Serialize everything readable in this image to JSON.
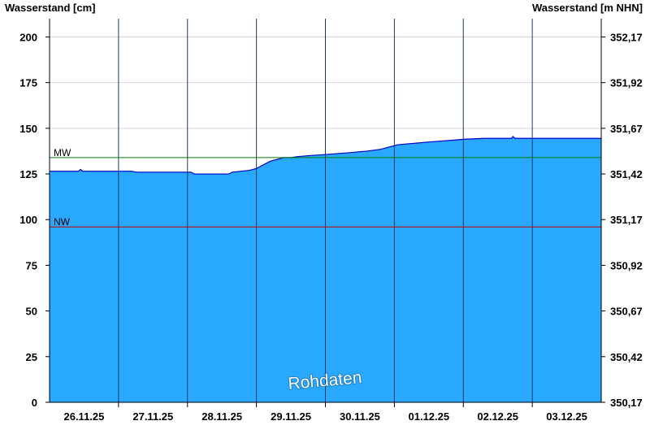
{
  "chart_data": {
    "type": "area",
    "left_axis_label": "Wasserstand [cm]",
    "right_axis_label": "Wasserstand [m NHN]",
    "ylim": [
      0,
      210
    ],
    "y_ticks": [
      0,
      25,
      50,
      75,
      100,
      125,
      150,
      175,
      200
    ],
    "y_tick_labels": [
      "0",
      "25",
      "50",
      "75",
      "100",
      "125",
      "150",
      "175",
      "200"
    ],
    "right_ticks": [
      0,
      25,
      50,
      75,
      100,
      125,
      150,
      175,
      200
    ],
    "right_tick_labels": [
      "350,17",
      "350,42",
      "350,67",
      "350,92",
      "351,17",
      "351,42",
      "351,67",
      "351,92",
      "352,17"
    ],
    "x_range": [
      0,
      8
    ],
    "day_boundaries": [
      1,
      2,
      3,
      4,
      5,
      6,
      7
    ],
    "x_tick_positions": [
      0.5,
      1.5,
      2.5,
      3.5,
      4.5,
      5.5,
      6.5,
      7.5
    ],
    "x_tick_labels": [
      "26.11.25",
      "27.11.25",
      "28.11.25",
      "29.11.25",
      "30.11.25",
      "01.12.25",
      "02.12.25",
      "03.12.25"
    ],
    "grid": true,
    "series": [
      {
        "x": [
          0,
          0.42,
          0.45,
          0.48,
          1.2,
          1.25,
          2.05,
          2.1,
          2.6,
          2.65,
          2.9,
          3.0,
          3.1,
          3.2,
          3.3,
          3.4,
          3.5,
          3.6,
          3.75,
          3.95,
          4.3,
          4.6,
          4.8,
          4.9,
          5.0,
          5.05,
          5.2,
          5.5,
          5.85,
          6.0,
          6.3,
          6.7,
          6.72,
          6.75,
          7.0,
          8.0
        ],
        "y": [
          126.5,
          126.5,
          127.5,
          126.5,
          126.5,
          126,
          126,
          125,
          125,
          126,
          127,
          128,
          130,
          132,
          133,
          134,
          134,
          134.5,
          135,
          135.5,
          136.5,
          137.5,
          138.5,
          139.5,
          140.5,
          141,
          141.5,
          142.5,
          143.5,
          144,
          144.5,
          144.5,
          145.5,
          144.5,
          144.5,
          144.5
        ]
      }
    ],
    "reference_lines": [
      {
        "label": "MW",
        "value": 134,
        "color": "#008000"
      },
      {
        "label": "NW",
        "value": 96,
        "color": "#c00000"
      }
    ],
    "fill_color": "#29a8ff",
    "line_color": "#0000cc",
    "watermark": "Rohdaten"
  }
}
